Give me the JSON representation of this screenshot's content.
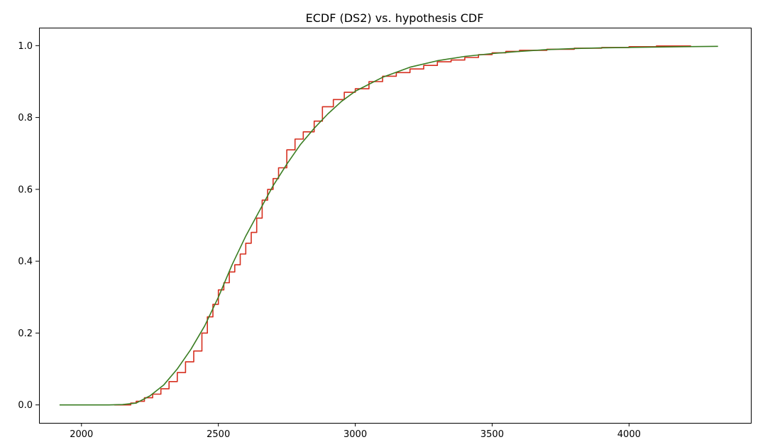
{
  "chart_data": {
    "type": "line",
    "title": "ECDF (DS2) vs. hypothesis CDF",
    "xlabel": "",
    "ylabel": "",
    "xlim": [
      1845,
      4445
    ],
    "ylim": [
      -0.05,
      1.05
    ],
    "xticks": [
      2000,
      2500,
      3000,
      3500,
      4000
    ],
    "xtick_labels": [
      "2000",
      "2500",
      "3000",
      "3500",
      "4000"
    ],
    "yticks": [
      0.0,
      0.2,
      0.4,
      0.6,
      0.8,
      1.0
    ],
    "ytick_labels": [
      "0.0",
      "0.2",
      "0.4",
      "0.6",
      "0.8",
      "1.0"
    ],
    "grid": false,
    "series": [
      {
        "color": "#d62f1f",
        "step": true,
        "x": [
          2120,
          2180,
          2200,
          2230,
          2260,
          2290,
          2320,
          2350,
          2380,
          2410,
          2440,
          2460,
          2480,
          2500,
          2520,
          2540,
          2560,
          2580,
          2600,
          2620,
          2640,
          2660,
          2680,
          2700,
          2720,
          2750,
          2780,
          2810,
          2850,
          2880,
          2920,
          2960,
          3000,
          3050,
          3100,
          3150,
          3200,
          3250,
          3300,
          3350,
          3400,
          3450,
          3500,
          3550,
          3600,
          3700,
          3800,
          3900,
          4000,
          4100,
          4225
        ],
        "y": [
          0.0,
          0.005,
          0.01,
          0.02,
          0.03,
          0.045,
          0.065,
          0.09,
          0.12,
          0.15,
          0.2,
          0.245,
          0.28,
          0.32,
          0.34,
          0.37,
          0.39,
          0.42,
          0.45,
          0.48,
          0.52,
          0.57,
          0.6,
          0.63,
          0.66,
          0.71,
          0.74,
          0.76,
          0.79,
          0.83,
          0.85,
          0.87,
          0.88,
          0.9,
          0.915,
          0.925,
          0.935,
          0.945,
          0.955,
          0.96,
          0.967,
          0.975,
          0.98,
          0.984,
          0.987,
          0.99,
          0.993,
          0.995,
          0.997,
          0.999,
          1.0
        ]
      },
      {
        "color": "#3a7d22",
        "step": false,
        "x": [
          1920,
          2000,
          2100,
          2150,
          2200,
          2250,
          2300,
          2350,
          2400,
          2450,
          2500,
          2550,
          2600,
          2650,
          2700,
          2750,
          2800,
          2850,
          2900,
          2950,
          3000,
          3100,
          3200,
          3300,
          3400,
          3500,
          3600,
          3700,
          3800,
          3900,
          4000,
          4100,
          4200,
          4325
        ],
        "y": [
          0.0,
          0.0,
          0.0,
          0.001,
          0.005,
          0.025,
          0.055,
          0.1,
          0.155,
          0.22,
          0.3,
          0.39,
          0.47,
          0.54,
          0.61,
          0.67,
          0.725,
          0.77,
          0.81,
          0.845,
          0.873,
          0.912,
          0.94,
          0.958,
          0.97,
          0.978,
          0.984,
          0.989,
          0.992,
          0.994,
          0.995,
          0.996,
          0.997,
          0.998
        ]
      }
    ]
  }
}
